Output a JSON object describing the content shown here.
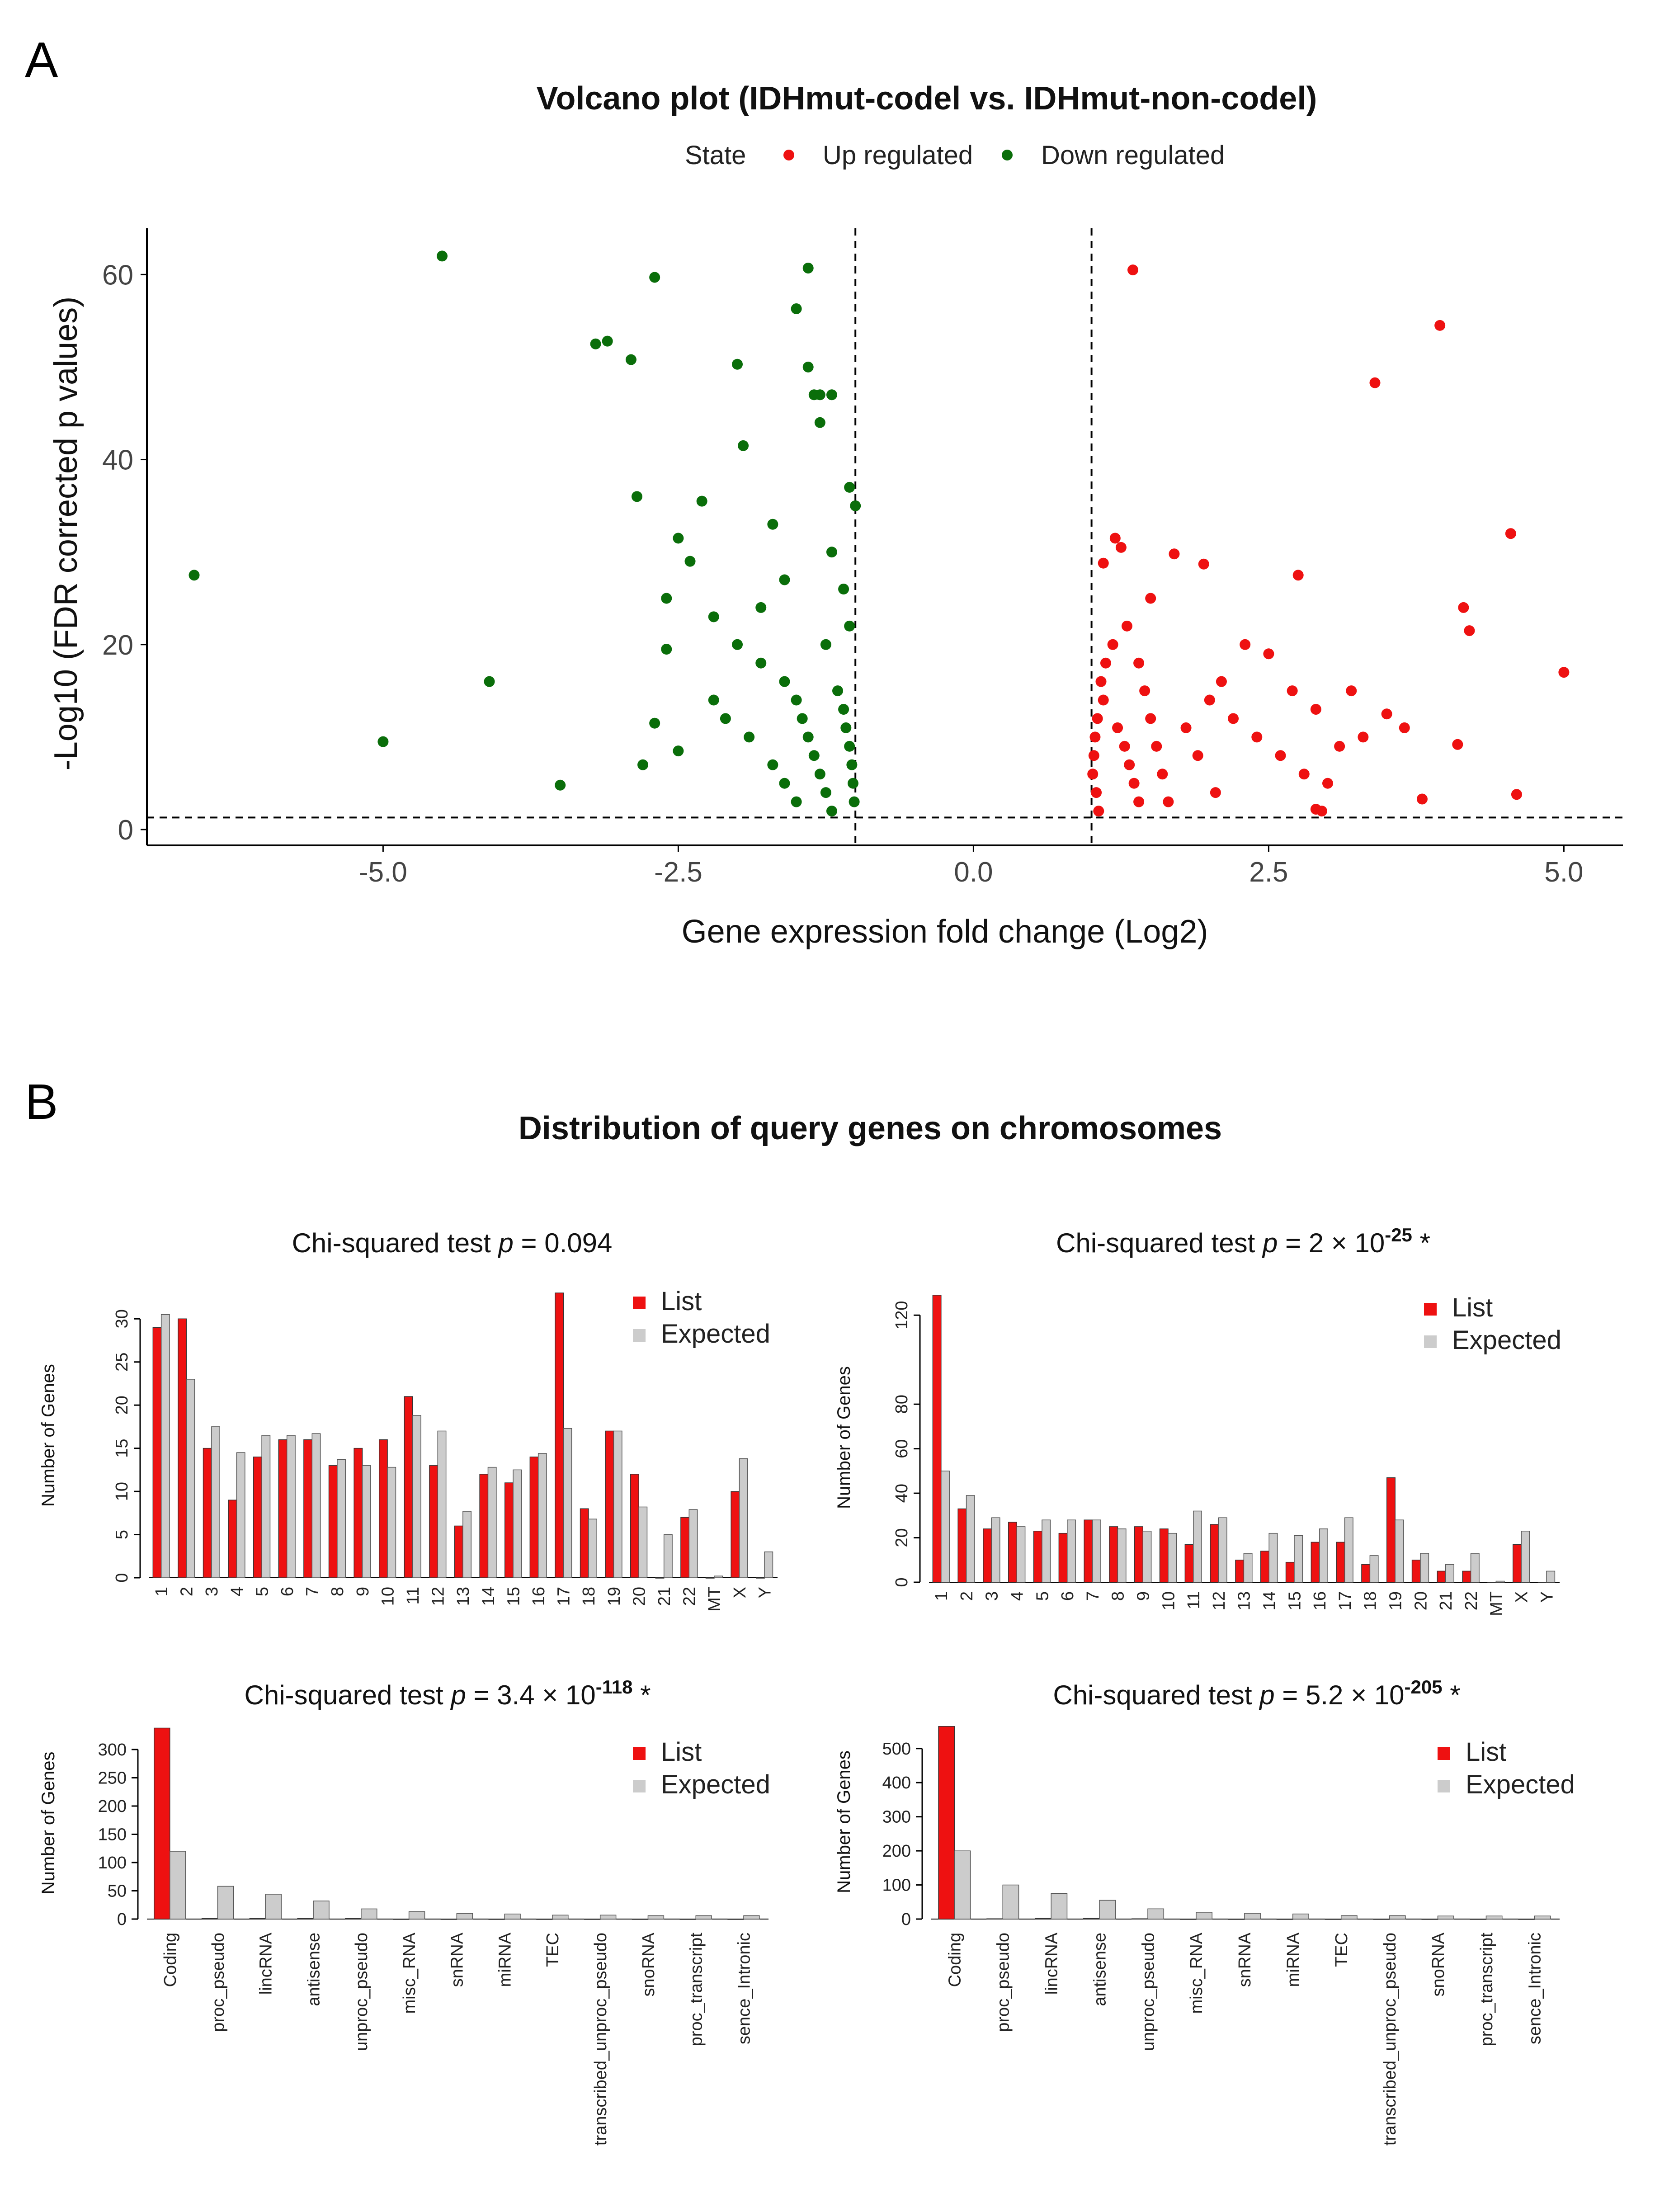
{
  "panels": {
    "a_letter": "A",
    "b_letter": "B"
  },
  "colors": {
    "up": "#ee1111",
    "down": "#0a6e0a",
    "list": "#ee1111",
    "expected": "#cccccc",
    "axis": "#000000"
  },
  "chart_data": [
    {
      "type": "scatter",
      "title": "Volcano plot (IDHmut-codel vs. IDHmut-non-codel)",
      "legend": {
        "title": "State",
        "entries": [
          "Up regulated",
          "Down regulated"
        ],
        "placement": "top"
      },
      "xlabel": "Gene expression fold change (Log2)",
      "ylabel": "-Log10 (FDR corrected p values)",
      "xlim": [
        -7,
        5.5
      ],
      "ylim": [
        0,
        65
      ],
      "xticks": [
        -5.0,
        -2.5,
        0.0,
        2.5,
        5.0
      ],
      "xtick_labels": [
        "-5.0",
        "-2.5",
        "0.0",
        "2.5",
        "5.0"
      ],
      "yticks": [
        0,
        20,
        40,
        60
      ],
      "ytick_labels": [
        "0",
        "20",
        "40",
        "60"
      ],
      "thresholds": {
        "x": [
          -1,
          1
        ],
        "y": 1.3
      },
      "series": [
        {
          "name": "Down regulated",
          "points": [
            [
              -6.6,
              27.5
            ],
            [
              -4.5,
              62
            ],
            [
              -5.0,
              9.5
            ],
            [
              -4.1,
              16
            ],
            [
              -3.5,
              4.8
            ],
            [
              -3.2,
              52.5
            ],
            [
              -3.1,
              52.8
            ],
            [
              -2.9,
              50.8
            ],
            [
              -2.7,
              59.7
            ],
            [
              -2.85,
              36
            ],
            [
              -2.5,
              31.5
            ],
            [
              -2.4,
              29
            ],
            [
              -2.3,
              35.5
            ],
            [
              -2.6,
              25
            ],
            [
              -2.2,
              23
            ],
            [
              -2.0,
              50.3
            ],
            [
              -1.95,
              41.5
            ],
            [
              -1.7,
              33
            ],
            [
              -1.5,
              56.3
            ],
            [
              -1.4,
              60.7
            ],
            [
              -1.4,
              50
            ],
            [
              -1.35,
              47
            ],
            [
              -1.3,
              47
            ],
            [
              -1.2,
              47
            ],
            [
              -1.3,
              44
            ],
            [
              -1.05,
              37
            ],
            [
              -1.0,
              35
            ],
            [
              -2.0,
              20
            ],
            [
              -1.8,
              18
            ],
            [
              -1.6,
              16
            ],
            [
              -1.5,
              14
            ],
            [
              -1.45,
              12
            ],
            [
              -1.4,
              10
            ],
            [
              -1.35,
              8
            ],
            [
              -1.3,
              6
            ],
            [
              -1.25,
              4
            ],
            [
              -1.2,
              2
            ],
            [
              -1.15,
              15
            ],
            [
              -1.1,
              13
            ],
            [
              -1.08,
              11
            ],
            [
              -1.05,
              9
            ],
            [
              -1.03,
              7
            ],
            [
              -1.02,
              5
            ],
            [
              -1.01,
              3
            ],
            [
              -2.1,
              12
            ],
            [
              -1.9,
              10
            ],
            [
              -1.7,
              7
            ],
            [
              -1.6,
              5
            ],
            [
              -1.5,
              3
            ],
            [
              -2.8,
              7
            ],
            [
              -2.7,
              11.5
            ],
            [
              -2.5,
              8.5
            ],
            [
              -2.2,
              14
            ],
            [
              -2.6,
              19.5
            ],
            [
              -1.8,
              24
            ],
            [
              -1.6,
              27
            ],
            [
              -1.2,
              30
            ],
            [
              -1.1,
              26
            ],
            [
              -1.05,
              22
            ],
            [
              -1.25,
              20
            ]
          ]
        },
        {
          "name": "Up regulated",
          "points": [
            [
              1.35,
              60.5
            ],
            [
              3.95,
              54.5
            ],
            [
              3.4,
              48.3
            ],
            [
              4.55,
              32
            ],
            [
              4.15,
              24
            ],
            [
              4.2,
              21.5
            ],
            [
              5.0,
              17
            ],
            [
              4.6,
              3.8
            ],
            [
              4.1,
              9.2
            ],
            [
              3.8,
              3.3
            ],
            [
              3.65,
              11
            ],
            [
              3.3,
              10
            ],
            [
              2.9,
              2.2
            ],
            [
              2.95,
              2
            ],
            [
              2.75,
              27.5
            ],
            [
              1.2,
              31.5
            ],
            [
              1.25,
              30.5
            ],
            [
              1.1,
              28.8
            ],
            [
              1.7,
              29.8
            ],
            [
              1.95,
              28.7
            ],
            [
              1.5,
              25
            ],
            [
              1.3,
              22
            ],
            [
              1.4,
              18
            ],
            [
              1.45,
              15
            ],
            [
              1.5,
              12
            ],
            [
              1.55,
              9
            ],
            [
              1.6,
              6
            ],
            [
              1.65,
              3
            ],
            [
              1.1,
              14
            ],
            [
              1.05,
              12
            ],
            [
              1.03,
              10
            ],
            [
              1.02,
              8
            ],
            [
              1.01,
              6
            ],
            [
              1.04,
              4
            ],
            [
              1.06,
              2
            ],
            [
              1.08,
              16
            ],
            [
              1.12,
              18
            ],
            [
              1.18,
              20
            ],
            [
              1.22,
              11
            ],
            [
              1.28,
              9
            ],
            [
              1.32,
              7
            ],
            [
              1.36,
              5
            ],
            [
              1.4,
              3
            ],
            [
              2.0,
              14
            ],
            [
              2.2,
              12
            ],
            [
              2.4,
              10
            ],
            [
              2.6,
              8
            ],
            [
              2.8,
              6
            ],
            [
              3.0,
              5
            ],
            [
              2.1,
              16
            ],
            [
              2.3,
              20
            ],
            [
              2.5,
              19
            ],
            [
              2.7,
              15
            ],
            [
              2.9,
              13
            ],
            [
              3.1,
              9
            ],
            [
              3.2,
              15
            ],
            [
              3.5,
              12.5
            ],
            [
              1.8,
              11
            ],
            [
              1.9,
              8
            ],
            [
              2.05,
              4
            ]
          ]
        }
      ]
    },
    {
      "type": "bar",
      "title": "Distribution of query genes on chromosomes",
      "panel": "chromosomes-1",
      "subtitle": "Chi-squared test p = 0.094",
      "ylabel": "Number of Genes",
      "ylim": [
        0,
        33
      ],
      "yticks": [
        0,
        5,
        10,
        15,
        20,
        25,
        30
      ],
      "legend": [
        "List",
        "Expected"
      ],
      "categories": [
        "1",
        "2",
        "3",
        "4",
        "5",
        "6",
        "7",
        "8",
        "9",
        "10",
        "11",
        "12",
        "13",
        "14",
        "15",
        "16",
        "17",
        "18",
        "19",
        "20",
        "21",
        "22",
        "MT",
        "X",
        "Y"
      ],
      "series": [
        {
          "name": "List",
          "values": [
            29,
            30,
            15,
            9,
            14,
            16,
            16,
            13,
            15,
            16,
            21,
            13,
            6,
            12,
            11,
            14,
            33,
            8,
            17,
            12,
            0,
            7,
            0,
            10,
            0
          ]
        },
        {
          "name": "Expected",
          "values": [
            30.5,
            23,
            17.5,
            14.5,
            16.5,
            16.5,
            16.7,
            13.7,
            13,
            12.8,
            18.8,
            17,
            7.7,
            12.8,
            12.5,
            14.4,
            17.3,
            6.8,
            17,
            8.2,
            5,
            7.9,
            0.2,
            13.8,
            3
          ]
        }
      ]
    },
    {
      "type": "bar",
      "panel": "chromosomes-2",
      "subtitle": "Chi-squared test p = 2 x 10-25 *",
      "ylabel": "Number of Genes",
      "ylim": [
        0,
        130
      ],
      "yticks": [
        0,
        20,
        40,
        60,
        80,
        120
      ],
      "legend": [
        "List",
        "Expected"
      ],
      "categories": [
        "1",
        "2",
        "3",
        "4",
        "5",
        "6",
        "7",
        "8",
        "9",
        "10",
        "11",
        "12",
        "13",
        "14",
        "15",
        "16",
        "17",
        "18",
        "19",
        "20",
        "21",
        "22",
        "MT",
        "X",
        "Y"
      ],
      "series": [
        {
          "name": "List",
          "values": [
            129,
            33,
            24,
            27,
            23,
            22,
            28,
            25,
            25,
            24,
            17,
            26,
            10,
            14,
            9,
            18,
            18,
            8,
            47,
            10,
            5,
            5,
            0,
            17,
            0
          ]
        },
        {
          "name": "Expected",
          "values": [
            50,
            39,
            29,
            25,
            28,
            28,
            28,
            24,
            23,
            22,
            32,
            29,
            13,
            22,
            21,
            24,
            29,
            12,
            28,
            13,
            8,
            13,
            0.5,
            23,
            5
          ]
        }
      ]
    },
    {
      "type": "bar",
      "panel": "biotypes-1",
      "subtitle": "Chi-squared test p = 3.4 x 10-118 *",
      "ylabel": "Number of Genes",
      "ylim": [
        0,
        340
      ],
      "yticks": [
        0,
        50,
        100,
        150,
        200,
        250,
        300
      ],
      "legend": [
        "List",
        "Expected"
      ],
      "categories": [
        "Coding",
        "proc_pseudo",
        "lincRNA",
        "antisense",
        "unproc_pseudo",
        "misc_RNA",
        "snRNA",
        "miRNA",
        "TEC",
        "transcribed_unproc_pseudo",
        "snoRNA",
        "proc_transcript",
        "sence_Intronic"
      ],
      "series": [
        {
          "name": "List",
          "values": [
            338,
            1,
            1,
            1,
            1,
            0,
            0,
            0,
            0,
            0,
            0,
            0,
            0
          ]
        },
        {
          "name": "Expected",
          "values": [
            120,
            58,
            44,
            32,
            18,
            13,
            10,
            9,
            7,
            7,
            6,
            6,
            6
          ]
        }
      ]
    },
    {
      "type": "bar",
      "panel": "biotypes-2",
      "subtitle": "Chi-squared test p = 5.2 x 10-205 *",
      "ylabel": "Number of Genes",
      "ylim": [
        0,
        570
      ],
      "yticks": [
        0,
        100,
        200,
        300,
        400,
        500
      ],
      "legend": [
        "List",
        "Expected"
      ],
      "categories": [
        "Coding",
        "proc_pseudo",
        "lincRNA",
        "antisense",
        "unproc_pseudo",
        "misc_RNA",
        "snRNA",
        "miRNA",
        "TEC",
        "transcribed_unproc_pseudo",
        "snoRNA",
        "proc_transcript",
        "sence_Intronic"
      ],
      "series": [
        {
          "name": "List",
          "values": [
            565,
            1,
            2,
            2,
            1,
            0,
            0,
            0,
            0,
            0,
            0,
            0,
            0
          ]
        },
        {
          "name": "Expected",
          "values": [
            200,
            100,
            75,
            55,
            30,
            20,
            17,
            15,
            10,
            10,
            9,
            9,
            9
          ]
        }
      ]
    }
  ]
}
